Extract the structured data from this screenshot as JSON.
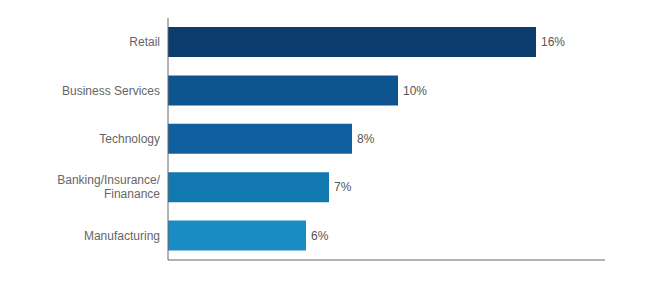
{
  "chart_data": {
    "type": "bar",
    "orientation": "horizontal",
    "categories": [
      "Manufacturing",
      "Banking/Insurance/\nFinanance",
      "Technology",
      "Business Services",
      "Retail"
    ],
    "values": [
      6,
      7,
      8,
      10,
      16
    ],
    "value_labels": [
      "6%",
      "7%",
      "8%",
      "10%",
      "16%"
    ],
    "colors": [
      "#1a8cc4",
      "#1278b0",
      "#1060a0",
      "#0e5590",
      "#0d3d6e"
    ],
    "xlim": [
      0,
      19
    ],
    "xticks": [],
    "data_labels": true,
    "tick_labels": "y",
    "grid": false
  }
}
